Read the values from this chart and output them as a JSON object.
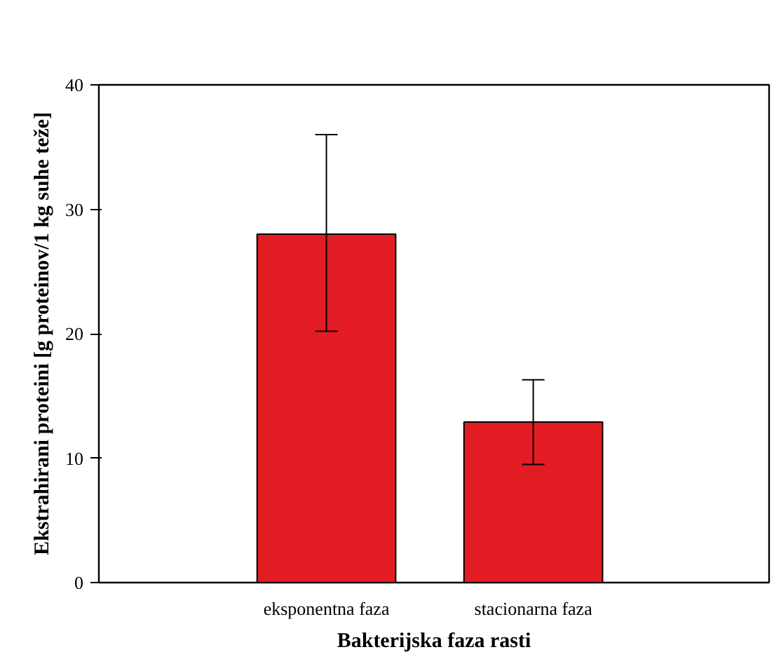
{
  "chart_data": {
    "type": "bar",
    "xlabel": "Bakterijska faza rasti",
    "ylabel": "Ekstrahirani proteini [g proteinov/1 kg suhe teže]",
    "categories": [
      "eksponentna faza",
      "stacionarna faza"
    ],
    "values": [
      28,
      12.9
    ],
    "errors": [
      [
        20.2,
        36
      ],
      [
        9.5,
        16.3
      ]
    ],
    "color": "#e31b23",
    "ylim": [
      0,
      40
    ],
    "yticks": [
      0,
      10,
      20,
      30,
      40
    ],
    "grid": false
  }
}
